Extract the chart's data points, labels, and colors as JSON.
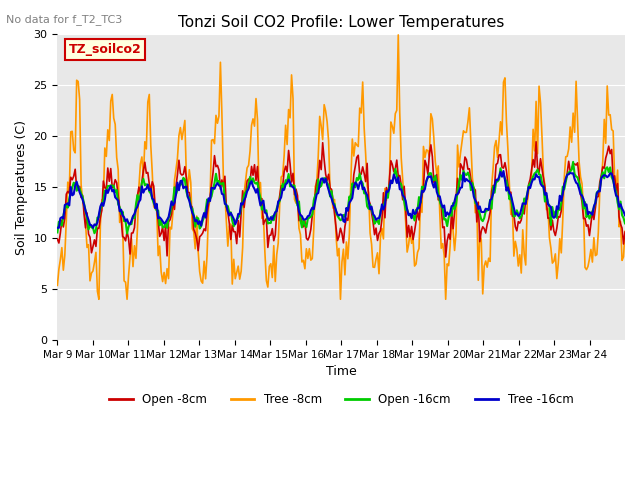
{
  "title": "Tonzi Soil CO2 Profile: Lower Temperatures",
  "subtitle": "No data for f_T2_TC3",
  "ylabel": "Soil Temperatures (C)",
  "xlabel": "Time",
  "legend_label": "TZ_soilco2",
  "ylim": [
    0,
    30
  ],
  "yticks": [
    0,
    5,
    10,
    15,
    20,
    25,
    30
  ],
  "xtick_labels": [
    "Mar 9",
    "Mar 10",
    "Mar 11",
    "Mar 12",
    "Mar 13",
    "Mar 14",
    "Mar 15",
    "Mar 16",
    "Mar 17",
    "Mar 18",
    "Mar 19",
    "Mar 20",
    "Mar 21",
    "Mar 22",
    "Mar 23",
    "Mar 24"
  ],
  "series_colors": {
    "open8": "#cc0000",
    "tree8": "#ff9900",
    "open16": "#00cc00",
    "tree16": "#0000cc"
  },
  "legend_entries": [
    "Open -8cm",
    "Tree -8cm",
    "Open -16cm",
    "Tree -16cm"
  ],
  "plot_bg_color": "#e8e8e8"
}
